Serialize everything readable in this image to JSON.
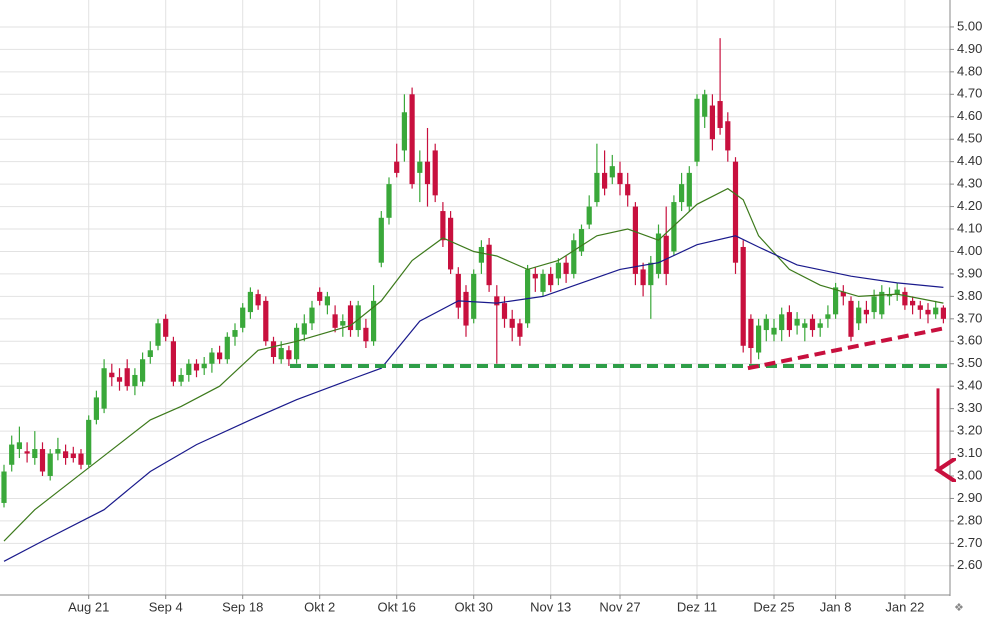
{
  "chart_data": {
    "type": "candlestick",
    "categories": [
      null,
      null,
      null,
      null,
      null,
      null,
      null,
      null,
      null,
      null,
      null,
      "Aug 21",
      null,
      null,
      null,
      null,
      null,
      null,
      null,
      null,
      null,
      "Sep 4",
      null,
      null,
      null,
      null,
      null,
      null,
      null,
      null,
      null,
      "Sep 18",
      null,
      null,
      null,
      null,
      null,
      null,
      null,
      null,
      null,
      "Okt 2",
      null,
      null,
      null,
      null,
      null,
      null,
      null,
      null,
      null,
      "Okt 16",
      null,
      null,
      null,
      null,
      null,
      null,
      null,
      null,
      null,
      "Okt 30",
      null,
      null,
      null,
      null,
      null,
      null,
      null,
      null,
      null,
      "Nov 13",
      null,
      null,
      null,
      null,
      null,
      null,
      null,
      null,
      "Nov 27",
      null,
      null,
      null,
      null,
      null,
      null,
      null,
      null,
      null,
      "Dez 11",
      null,
      null,
      null,
      null,
      null,
      null,
      null,
      null,
      null,
      "Dez 25",
      null,
      null,
      null,
      null,
      null,
      null,
      null,
      "Jan 8",
      null,
      null,
      null,
      null,
      null,
      null,
      null,
      null,
      "Jan 22",
      null,
      null,
      null,
      null,
      null
    ],
    "open": [
      2.88,
      3.05,
      3.12,
      3.11,
      3.08,
      3.12,
      3.0,
      3.1,
      3.11,
      3.1,
      3.1,
      3.05,
      3.25,
      3.3,
      3.46,
      3.44,
      3.48,
      3.4,
      3.42,
      3.53,
      3.58,
      3.7,
      3.6,
      3.42,
      3.45,
      3.5,
      3.48,
      3.5,
      3.55,
      3.52,
      3.62,
      3.66,
      3.73,
      3.81,
      3.78,
      3.6,
      3.52,
      3.56,
      3.52,
      3.63,
      3.68,
      3.82,
      3.76,
      3.72,
      3.67,
      3.76,
      3.65,
      3.66,
      3.6,
      3.95,
      4.15,
      4.4,
      4.45,
      4.7,
      4.35,
      4.4,
      4.45,
      4.18,
      4.15,
      3.9,
      3.82,
      3.7,
      3.95,
      4.03,
      3.8,
      3.77,
      3.7,
      3.68,
      3.68,
      3.9,
      3.82,
      3.9,
      3.88,
      3.95,
      3.9,
      4.0,
      4.12,
      4.22,
      4.35,
      4.33,
      4.35,
      4.3,
      4.2,
      3.92,
      3.85,
      3.9,
      4.07,
      4.0,
      4.22,
      4.2,
      4.4,
      4.6,
      4.65,
      4.67,
      4.58,
      4.4,
      4.02,
      3.7,
      3.55,
      3.65,
      3.63,
      3.65,
      3.73,
      3.67,
      3.66,
      3.7,
      3.66,
      3.7,
      3.72,
      3.82,
      3.78,
      3.68,
      3.74,
      3.73,
      3.72,
      3.8,
      3.81,
      3.82,
      3.78,
      3.76,
      3.74,
      3.72,
      3.75
    ],
    "high": [
      3.05,
      3.18,
      3.22,
      3.15,
      3.2,
      3.15,
      3.12,
      3.17,
      3.14,
      3.13,
      3.12,
      3.27,
      3.38,
      3.52,
      3.5,
      3.48,
      3.52,
      3.48,
      3.55,
      3.6,
      3.7,
      3.72,
      3.62,
      3.48,
      3.52,
      3.52,
      3.53,
      3.57,
      3.58,
      3.64,
      3.68,
      3.77,
      3.84,
      3.83,
      3.8,
      3.62,
      3.6,
      3.58,
      3.68,
      3.72,
      3.78,
      3.84,
      3.82,
      3.76,
      3.72,
      3.78,
      3.78,
      3.7,
      3.85,
      4.18,
      4.33,
      4.48,
      4.7,
      4.73,
      4.45,
      4.55,
      4.48,
      4.22,
      4.18,
      3.93,
      3.85,
      3.92,
      4.05,
      4.06,
      3.85,
      3.8,
      3.74,
      3.7,
      3.94,
      3.93,
      3.92,
      3.93,
      3.97,
      3.98,
      4.08,
      4.12,
      4.25,
      4.48,
      4.45,
      4.43,
      4.4,
      4.35,
      4.22,
      3.95,
      3.98,
      4.12,
      4.2,
      4.25,
      4.35,
      4.38,
      4.7,
      4.72,
      4.7,
      4.95,
      4.62,
      4.42,
      4.05,
      3.72,
      3.7,
      3.72,
      3.7,
      3.75,
      3.76,
      3.73,
      3.7,
      3.72,
      3.7,
      3.76,
      3.86,
      3.85,
      3.8,
      3.78,
      3.78,
      3.83,
      3.85,
      3.84,
      3.86,
      3.84,
      3.8,
      3.78,
      3.77,
      3.78,
      3.76
    ],
    "low": [
      2.86,
      3.02,
      3.08,
      3.06,
      3.05,
      3.0,
      2.98,
      3.07,
      3.05,
      3.06,
      3.03,
      3.04,
      3.23,
      3.28,
      3.4,
      3.38,
      3.38,
      3.36,
      3.4,
      3.5,
      3.56,
      3.6,
      3.4,
      3.4,
      3.42,
      3.44,
      3.45,
      3.46,
      3.5,
      3.5,
      3.58,
      3.64,
      3.7,
      3.74,
      3.58,
      3.5,
      3.5,
      3.49,
      3.5,
      3.6,
      3.65,
      3.76,
      3.72,
      3.64,
      3.62,
      3.62,
      3.62,
      3.57,
      3.58,
      3.93,
      4.12,
      4.33,
      4.4,
      4.28,
      4.22,
      4.2,
      4.22,
      4.02,
      3.9,
      3.7,
      3.62,
      3.68,
      3.9,
      3.82,
      3.5,
      3.66,
      3.6,
      3.58,
      3.66,
      3.82,
      3.8,
      3.82,
      3.85,
      3.86,
      3.88,
      3.98,
      4.1,
      4.2,
      4.25,
      4.3,
      4.25,
      4.2,
      3.85,
      3.8,
      3.7,
      3.88,
      3.85,
      3.98,
      4.18,
      4.18,
      4.38,
      4.55,
      4.45,
      4.52,
      4.4,
      3.9,
      3.55,
      3.5,
      3.52,
      3.6,
      3.6,
      3.6,
      3.62,
      3.63,
      3.6,
      3.62,
      3.62,
      3.66,
      3.7,
      3.76,
      3.6,
      3.65,
      3.68,
      3.7,
      3.7,
      3.76,
      3.78,
      3.74,
      3.72,
      3.7,
      3.68,
      3.7,
      3.68
    ],
    "close": [
      3.02,
      3.14,
      3.15,
      3.1,
      3.12,
      3.02,
      3.1,
      3.12,
      3.08,
      3.08,
      3.05,
      3.25,
      3.35,
      3.48,
      3.44,
      3.42,
      3.4,
      3.45,
      3.52,
      3.56,
      3.68,
      3.62,
      3.42,
      3.45,
      3.5,
      3.47,
      3.5,
      3.55,
      3.52,
      3.62,
      3.65,
      3.75,
      3.82,
      3.76,
      3.6,
      3.53,
      3.57,
      3.52,
      3.66,
      3.68,
      3.75,
      3.78,
      3.8,
      3.66,
      3.69,
      3.65,
      3.76,
      3.6,
      3.78,
      4.15,
      4.3,
      4.35,
      4.62,
      4.3,
      4.4,
      4.3,
      4.25,
      4.05,
      3.92,
      3.75,
      3.67,
      3.9,
      4.02,
      3.85,
      3.76,
      3.7,
      3.66,
      3.62,
      3.92,
      3.88,
      3.9,
      3.85,
      3.95,
      3.9,
      4.05,
      4.1,
      4.2,
      4.35,
      4.28,
      4.38,
      4.3,
      4.25,
      3.9,
      3.85,
      3.95,
      4.08,
      3.9,
      4.22,
      4.3,
      4.35,
      4.68,
      4.7,
      4.5,
      4.55,
      4.45,
      3.95,
      3.58,
      3.57,
      3.67,
      3.7,
      3.66,
      3.72,
      3.65,
      3.7,
      3.68,
      3.65,
      3.68,
      3.72,
      3.84,
      3.8,
      3.62,
      3.75,
      3.72,
      3.8,
      3.82,
      3.81,
      3.83,
      3.76,
      3.76,
      3.74,
      3.72,
      3.75,
      3.7
    ],
    "up_color": "#3aa83a",
    "down_color": "#c8103e",
    "series": [
      {
        "color": "#3d7a1c",
        "x": [
          0,
          4,
          7,
          13,
          19,
          23,
          28,
          33,
          38,
          45,
          49,
          53,
          57,
          61,
          64,
          68,
          72,
          77,
          81,
          85,
          90,
          94,
          96,
          98,
          102,
          106,
          111,
          116,
          122
        ],
        "values": [
          2.71,
          2.85,
          2.93,
          3.09,
          3.25,
          3.31,
          3.4,
          3.56,
          3.6,
          3.67,
          3.78,
          3.96,
          4.06,
          4.0,
          3.98,
          3.92,
          3.96,
          4.07,
          4.1,
          4.05,
          4.21,
          4.28,
          4.23,
          4.07,
          3.92,
          3.85,
          3.8,
          3.81,
          3.77
        ]
      },
      {
        "color": "#1a1a8c",
        "x": [
          0,
          5,
          13,
          19,
          25,
          32,
          38,
          45,
          49,
          54,
          59,
          64,
          70,
          75,
          80,
          85,
          90,
          95,
          98,
          103,
          110,
          116,
          122
        ],
        "values": [
          2.62,
          2.71,
          2.85,
          3.02,
          3.14,
          3.25,
          3.34,
          3.43,
          3.48,
          3.69,
          3.78,
          3.77,
          3.8,
          3.86,
          3.92,
          3.95,
          4.03,
          4.07,
          4.02,
          3.94,
          3.89,
          3.86,
          3.84
        ]
      }
    ],
    "annotations": {
      "support": {
        "value": 3.49,
        "color": "#2e9e48"
      },
      "trendline": {
        "x": [
          97,
          122
        ],
        "values": [
          3.48,
          3.66
        ],
        "color": "#c8103e"
      },
      "arrow": {
        "values": [
          3.39,
          3.0
        ],
        "color": "#c8103e"
      }
    },
    "ylim": [
      2.47,
      5.12
    ],
    "yticks": [
      {
        "value": 2.6,
        "label": "2.60"
      },
      {
        "value": 2.7,
        "label": "2.70"
      },
      {
        "value": 2.8,
        "label": "2.80"
      },
      {
        "value": 2.9,
        "label": "2.90"
      },
      {
        "value": 3.0,
        "label": "3.00"
      },
      {
        "value": 3.1,
        "label": "3.10"
      },
      {
        "value": 3.2,
        "label": "3.20"
      },
      {
        "value": 3.3,
        "label": "3.30"
      },
      {
        "value": 3.4,
        "label": "3.40"
      },
      {
        "value": 3.5,
        "label": "3.50"
      },
      {
        "value": 3.6,
        "label": "3.60"
      },
      {
        "value": 3.7,
        "label": "3.70"
      },
      {
        "value": 3.8,
        "label": "3.80"
      },
      {
        "value": 3.9,
        "label": "3.90"
      },
      {
        "value": 4.0,
        "label": "4.00"
      },
      {
        "value": 4.1,
        "label": "4.10"
      },
      {
        "value": 4.2,
        "label": "4.20"
      },
      {
        "value": 4.3,
        "label": "4.30"
      },
      {
        "value": 4.4,
        "label": "4.40"
      },
      {
        "value": 4.5,
        "label": "4.50"
      },
      {
        "value": 4.6,
        "label": "4.60"
      },
      {
        "value": 4.7,
        "label": "4.70"
      },
      {
        "value": 4.8,
        "label": "4.80"
      },
      {
        "value": 4.9,
        "label": "4.90"
      },
      {
        "value": 5.0,
        "label": "5.00"
      }
    ],
    "grid": true
  }
}
